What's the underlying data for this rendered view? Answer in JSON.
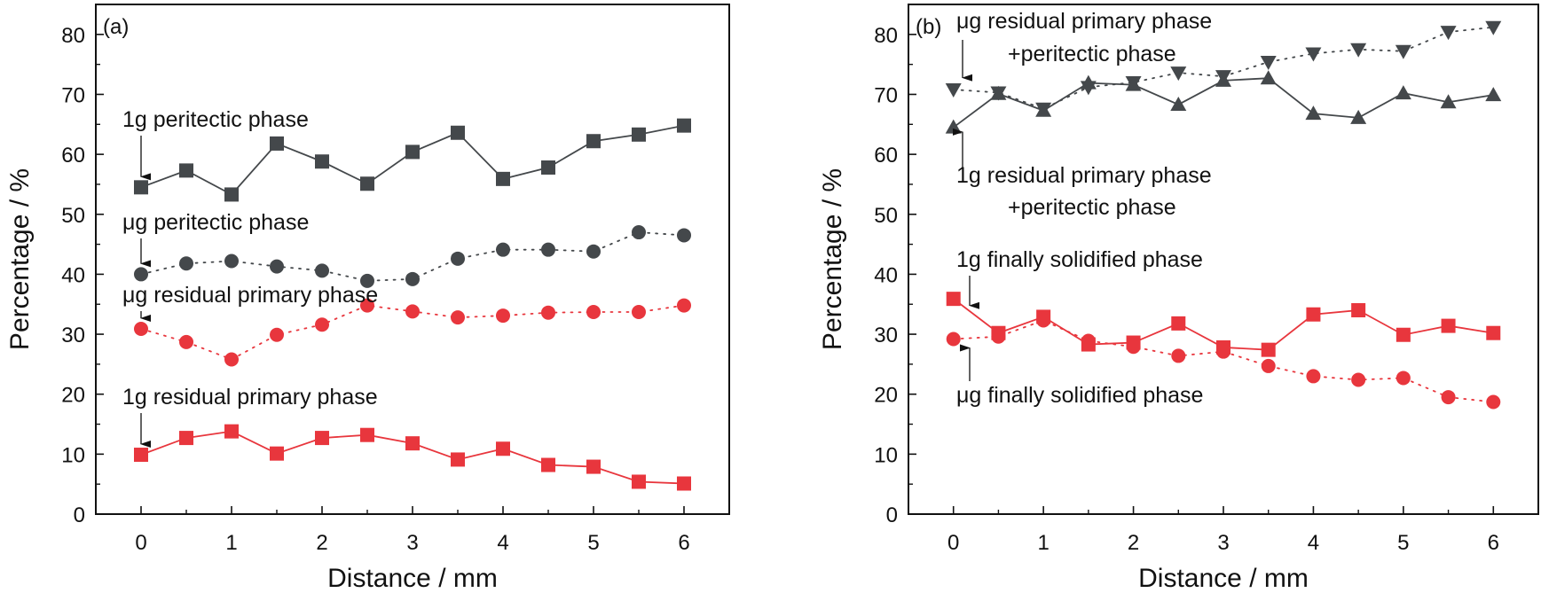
{
  "chart_data": [
    {
      "type": "line",
      "panel_label": "(a)",
      "xlabel": "Distance / mm",
      "ylabel": "Percentage / %",
      "xlim": [
        -0.5,
        6.5
      ],
      "ylim": [
        0,
        85
      ],
      "xticks": [
        0,
        1,
        2,
        3,
        4,
        5,
        6
      ],
      "yticks": [
        0,
        10,
        20,
        30,
        40,
        50,
        60,
        70,
        80
      ],
      "grid": false,
      "x": [
        0,
        0.5,
        1,
        1.5,
        2,
        2.5,
        3,
        3.5,
        4,
        4.5,
        5,
        5.5,
        6
      ],
      "series": [
        {
          "name": "1g peritectic phase",
          "color": "#44484b",
          "marker": "square",
          "line": "solid",
          "values": [
            54.5,
            57.3,
            53.3,
            61.8,
            58.8,
            55.1,
            60.4,
            63.6,
            55.9,
            57.8,
            62.2,
            63.3,
            64.8
          ]
        },
        {
          "name": "μg peritectic phase",
          "color": "#44484b",
          "marker": "circle",
          "line": "dotted",
          "values": [
            40.0,
            41.8,
            42.2,
            41.3,
            40.6,
            38.9,
            39.2,
            42.6,
            44.1,
            44.1,
            43.8,
            47.0,
            46.5
          ]
        },
        {
          "name": "μg residual primary phase",
          "color": "#e8363d",
          "marker": "circle",
          "line": "dotted",
          "values": [
            30.9,
            28.7,
            25.8,
            29.9,
            31.6,
            34.8,
            33.8,
            32.8,
            33.1,
            33.6,
            33.7,
            33.7,
            34.8
          ]
        },
        {
          "name": "1g residual primary phase",
          "color": "#e8363d",
          "marker": "square",
          "line": "solid",
          "values": [
            9.9,
            12.7,
            13.8,
            10.1,
            12.7,
            13.2,
            11.8,
            9.1,
            10.9,
            8.2,
            7.9,
            5.4,
            5.1
          ]
        }
      ],
      "annotations": [
        {
          "lines": [
            "1g peritectic phase"
          ],
          "arrow_to": [
            0,
            54.5
          ]
        },
        {
          "lines": [
            "μg peritectic phase"
          ],
          "arrow_to": [
            0,
            40.0
          ]
        },
        {
          "lines": [
            "μg residual primary phase"
          ],
          "arrow_to": [
            0,
            30.9
          ]
        },
        {
          "lines": [
            "1g residual primary phase"
          ],
          "arrow_to": [
            0,
            9.9
          ]
        }
      ]
    },
    {
      "type": "line",
      "panel_label": "(b)",
      "xlabel": "Distance / mm",
      "ylabel": "Percentage / %",
      "xlim": [
        -0.5,
        6.5
      ],
      "ylim": [
        0,
        85
      ],
      "xticks": [
        0,
        1,
        2,
        3,
        4,
        5,
        6
      ],
      "yticks": [
        0,
        10,
        20,
        30,
        40,
        50,
        60,
        70,
        80
      ],
      "grid": false,
      "x": [
        0,
        0.5,
        1,
        1.5,
        2,
        2.5,
        3,
        3.5,
        4,
        4.5,
        5,
        5.5,
        6
      ],
      "series": [
        {
          "name": "μg residual primary phase +peritectic phase",
          "color": "#44484b",
          "marker": "triangle-down",
          "line": "dotted",
          "values": [
            70.8,
            70.3,
            67.6,
            71.2,
            72.0,
            73.6,
            73.0,
            75.4,
            76.8,
            77.5,
            77.2,
            80.4,
            81.2
          ]
        },
        {
          "name": "1g residual primary phase +peritectic phase",
          "color": "#44484b",
          "marker": "triangle-up",
          "line": "solid",
          "values": [
            64.5,
            70.1,
            67.3,
            71.9,
            71.6,
            68.3,
            72.3,
            72.7,
            66.8,
            66.1,
            70.2,
            68.7,
            69.9
          ]
        },
        {
          "name": "1g finally solidified phase",
          "color": "#e8363d",
          "marker": "square",
          "line": "solid",
          "values": [
            35.9,
            30.2,
            32.9,
            28.3,
            28.6,
            31.8,
            27.8,
            27.4,
            33.3,
            34.0,
            29.9,
            31.4,
            30.2
          ]
        },
        {
          "name": "μg finally solidified phase",
          "color": "#e8363d",
          "marker": "circle",
          "line": "dotted",
          "values": [
            29.2,
            29.6,
            32.3,
            28.9,
            27.9,
            26.4,
            27.1,
            24.7,
            23.0,
            22.4,
            22.7,
            19.5,
            18.7
          ]
        }
      ],
      "annotations": [
        {
          "lines": [
            "μg residual primary phase",
            "+peritectic phase"
          ],
          "arrow_to": [
            0.15,
            71.0
          ]
        },
        {
          "lines": [
            "1g residual primary phase",
            "+peritectic phase"
          ],
          "arrow_to": [
            0.15,
            65.5
          ]
        },
        {
          "lines": [
            "1g finally solidified phase"
          ],
          "arrow_to": [
            0.2,
            33.0
          ]
        },
        {
          "lines": [
            "μg finally solidified phase"
          ],
          "arrow_to": [
            0.2,
            29.5
          ]
        }
      ]
    }
  ]
}
